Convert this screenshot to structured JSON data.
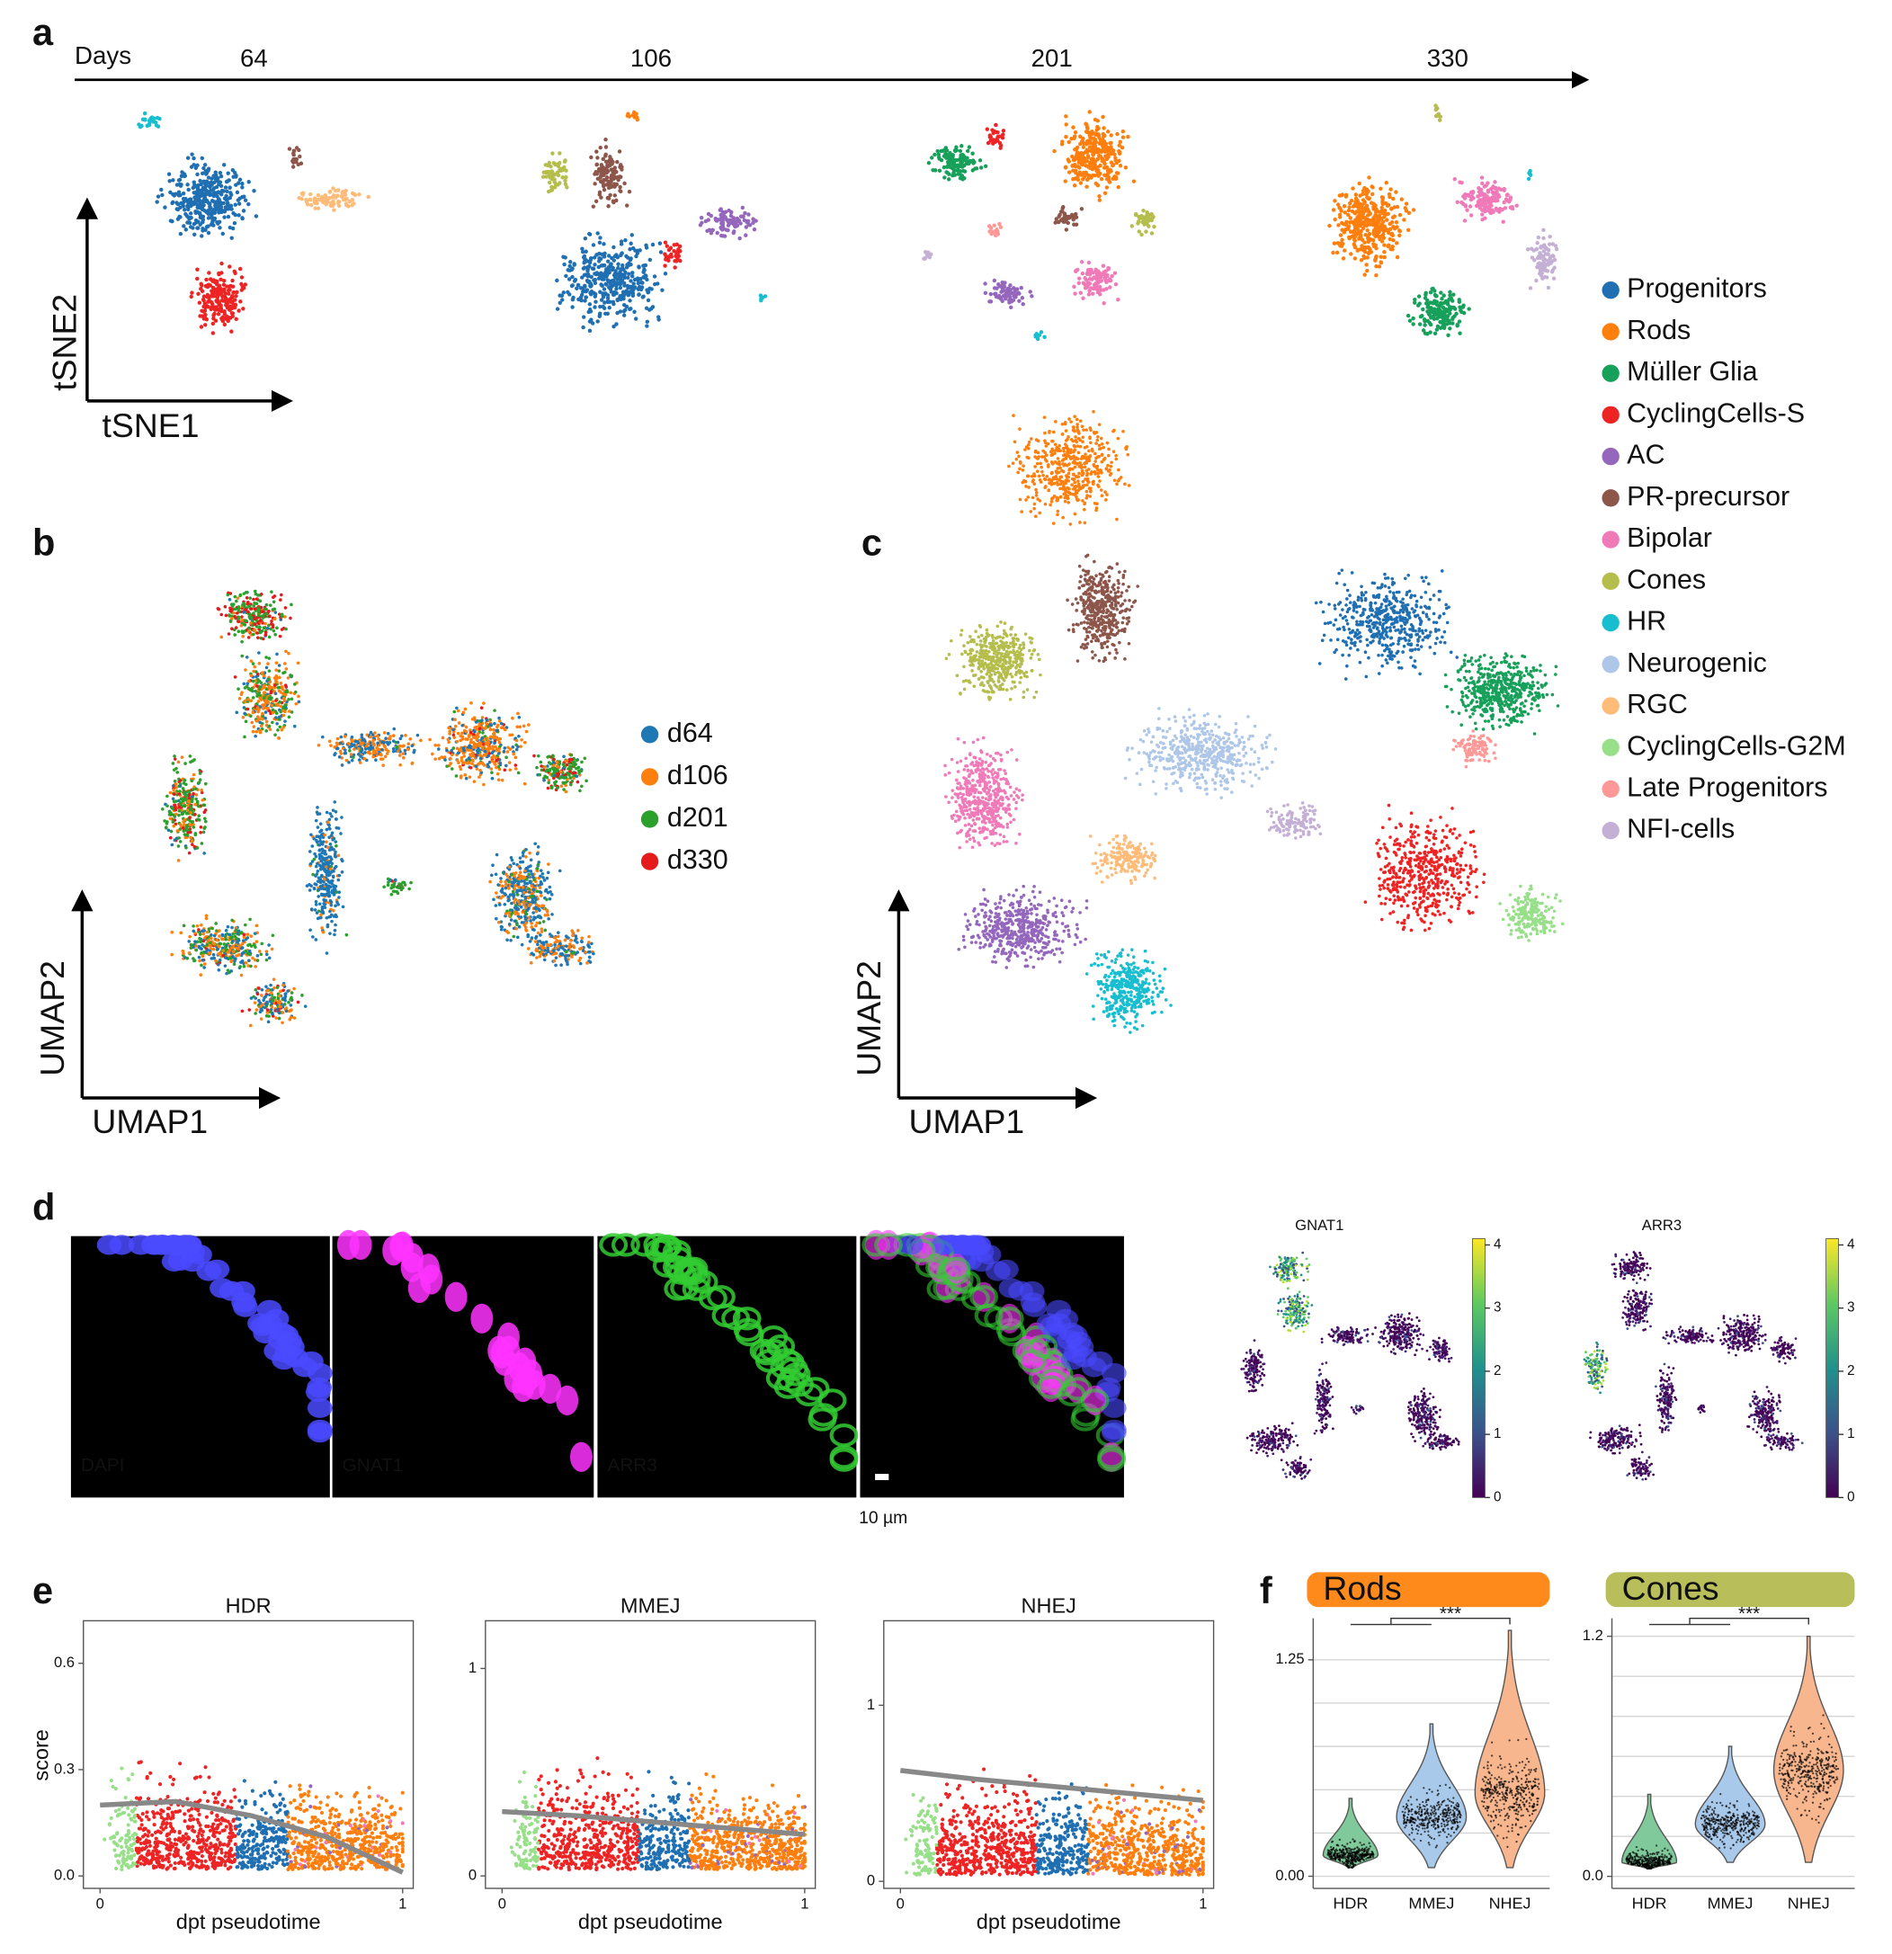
{
  "figure": {
    "cell_types": [
      {
        "name": "Progenitors",
        "color": "#1f6fb2"
      },
      {
        "name": "Rods",
        "color": "#ff7f0e"
      },
      {
        "name": "Müller Glia",
        "color": "#17a05a"
      },
      {
        "name": "CyclingCells-S",
        "color": "#ee2424"
      },
      {
        "name": "AC",
        "color": "#9467bd"
      },
      {
        "name": "PR-precursor",
        "color": "#8c564b"
      },
      {
        "name": "Bipolar",
        "color": "#f07ab8"
      },
      {
        "name": "Cones",
        "color": "#b5bd4c"
      },
      {
        "name": "HR",
        "color": "#17becf"
      },
      {
        "name": "Neurogenic",
        "color": "#aec7e8"
      },
      {
        "name": "RGC",
        "color": "#ffbb78"
      },
      {
        "name": "CyclingCells-G2M",
        "color": "#98df8a"
      },
      {
        "name": "Late Progenitors",
        "color": "#ff9896"
      },
      {
        "name": "NFI-cells",
        "color": "#c5b0d5"
      }
    ],
    "panel_a": {
      "label": "a",
      "days_label": "Days",
      "days": [
        64,
        106,
        201,
        330
      ],
      "x_axis_label": "tSNE1",
      "y_axis_label": "tSNE2"
    },
    "panel_b": {
      "label": "b",
      "x_axis_label": "UMAP1",
      "y_axis_label": "UMAP2",
      "legend": [
        {
          "name": "d64",
          "color": "#1f77b4"
        },
        {
          "name": "d106",
          "color": "#ff7f0e"
        },
        {
          "name": "d201",
          "color": "#2ca02c"
        },
        {
          "name": "d330",
          "color": "#e41a1c"
        }
      ]
    },
    "panel_c": {
      "label": "c",
      "x_axis_label": "UMAP1",
      "y_axis_label": "UMAP2"
    },
    "panel_d": {
      "label": "d",
      "channels": [
        "DAPI",
        "GNAT1",
        "ARR3"
      ],
      "channel_colors": [
        "#4a4aff",
        "#ff33ff",
        "#33cc33"
      ],
      "scale_bar": "10 µm",
      "feature_plots": [
        {
          "title": "GNAT1"
        },
        {
          "title": "ARR3"
        }
      ],
      "colorbar_lim": [
        0,
        4.1
      ],
      "colorbar_ticks": [
        0,
        1,
        2,
        3,
        4
      ]
    },
    "panel_e": {
      "label": "e",
      "y_axis_label": "score",
      "x_axis_label": "dpt pseudotime",
      "plots": [
        {
          "title": "HDR",
          "xlim": [
            -0.055,
            1.035
          ],
          "xticks": [
            0,
            1
          ],
          "ylim": [
            -0.035,
            0.72
          ],
          "yticks": [
            {
              "value": 0,
              "label": "0.0"
            },
            0.3,
            0.6
          ],
          "trend": {
            "x": [
              0,
              0.25,
              0.5,
              0.75,
              1
            ],
            "y": [
              0.2,
              0.21,
              0.17,
              0.11,
              0.01
            ]
          }
        },
        {
          "title": "MMEJ",
          "xlim": [
            -0.055,
            1.035
          ],
          "xticks": [
            0,
            1
          ],
          "ylim": [
            -0.06,
            1.23
          ],
          "yticks": [
            0,
            1
          ],
          "trend": {
            "x": [
              0,
              0.25,
              0.5,
              0.75,
              1
            ],
            "y": [
              0.31,
              0.29,
              0.26,
              0.23,
              0.2
            ]
          }
        },
        {
          "title": "NHEJ",
          "xlim": [
            -0.055,
            1.035
          ],
          "xticks": [
            0,
            1
          ],
          "ylim": [
            -0.04,
            1.48
          ],
          "yticks": [
            0,
            1
          ],
          "trend": {
            "x": [
              0,
              0.25,
              0.5,
              0.75,
              1
            ],
            "y": [
              0.63,
              0.58,
              0.54,
              0.5,
              0.46
            ]
          }
        }
      ]
    },
    "panel_f": {
      "label": "f",
      "categories": [
        "HDR",
        "MMEJ",
        "NHEJ"
      ],
      "significance": "***",
      "violin_colors": [
        "#7fc99a",
        "#a9c9ea",
        "#f8b68e"
      ],
      "plots": [
        {
          "title": "Rods",
          "color": "#ff8a1c",
          "ylim": [
            -0.07,
            1.49
          ],
          "yticks": [
            {
              "value": 0,
              "label": "0.00"
            },
            1.25
          ],
          "gridlines": [
            0,
            0.25,
            0.5,
            0.75,
            1,
            1.25
          ],
          "violins": [
            {
              "min": 0.05,
              "mode": 0.12,
              "max": 0.45
            },
            {
              "min": 0.05,
              "mode": 0.34,
              "max": 0.88
            },
            {
              "min": 0.05,
              "mode": 0.48,
              "max": 1.42
            }
          ]
        },
        {
          "title": "Cones",
          "color": "#b8bf5a",
          "ylim": [
            -0.06,
            1.29
          ],
          "yticks": [
            {
              "value": 0,
              "label": "0.0"
            },
            1.2
          ],
          "gridlines": [
            0,
            0.2,
            0.4,
            0.6,
            0.8,
            1,
            1.2
          ],
          "violins": [
            {
              "min": 0.04,
              "mode": 0.07,
              "max": 0.41
            },
            {
              "min": 0.07,
              "mode": 0.26,
              "max": 0.65
            },
            {
              "min": 0.07,
              "mode": 0.53,
              "max": 1.2
            }
          ]
        }
      ]
    }
  }
}
